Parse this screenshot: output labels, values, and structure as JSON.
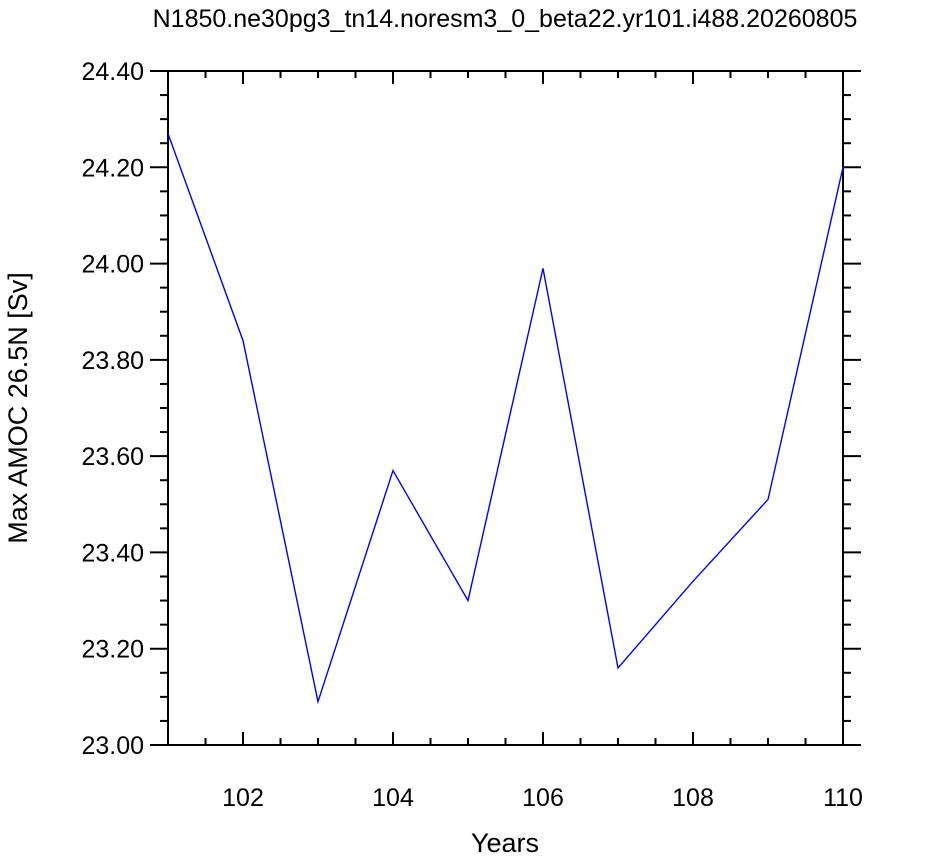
{
  "chart_data": {
    "type": "line",
    "title": "N1850.ne30pg3_tn14.noresm3_0_beta22.yr101.i488.20260805",
    "xlabel": "Years",
    "ylabel": "Max AMOC 26.5N [Sv]",
    "xlim": [
      101,
      110
    ],
    "ylim": [
      23.0,
      24.4
    ],
    "x_ticks": [
      102,
      104,
      106,
      108,
      110
    ],
    "y_ticks": [
      "23.00",
      "23.20",
      "23.40",
      "23.60",
      "23.80",
      "24.00",
      "24.20",
      "24.40"
    ],
    "grid": false,
    "series": [
      {
        "color": "#0000ff",
        "x": [
          101,
          102,
          103,
          104,
          105,
          106,
          107,
          108,
          109,
          110
        ],
        "values": [
          24.27,
          23.84,
          23.09,
          23.57,
          23.3,
          23.99,
          23.16,
          23.34,
          23.51,
          24.2
        ]
      }
    ]
  }
}
